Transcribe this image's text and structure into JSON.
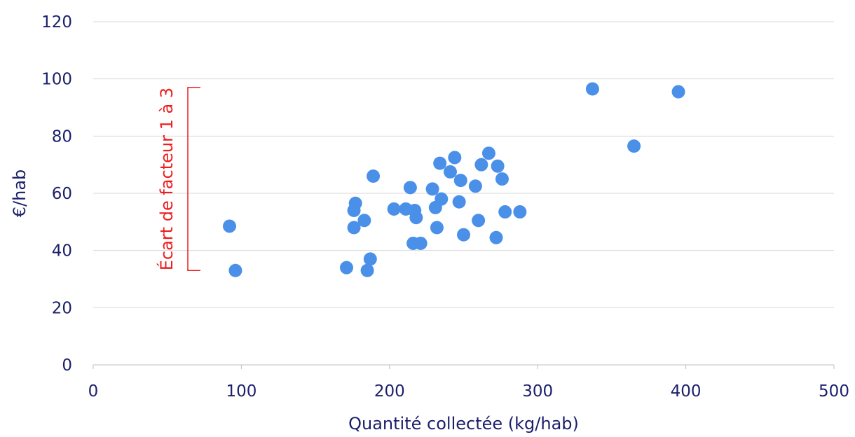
{
  "colors": {
    "points": "#4a90e8",
    "text": "#1b1f6b",
    "annotation": "#ee1c1c"
  },
  "chart_data": {
    "type": "scatter",
    "title": "",
    "xlabel": "Quantité collectée (kg/hab)",
    "ylabel": "€/hab",
    "xlim": [
      0,
      500
    ],
    "ylim": [
      0,
      120
    ],
    "x_ticks": [
      "0",
      "100",
      "200",
      "300",
      "400",
      "500"
    ],
    "y_ticks": [
      "0",
      "20",
      "40",
      "60",
      "80",
      "100",
      "120"
    ],
    "grid": "horizontal",
    "legend": "none",
    "annotation": {
      "text": "Écart de facteur 1 à 3",
      "y_from": 33,
      "y_to": 97
    },
    "series": [
      {
        "points": [
          {
            "x": 92,
            "y": 48.5
          },
          {
            "x": 96,
            "y": 33
          },
          {
            "x": 171,
            "y": 34
          },
          {
            "x": 176,
            "y": 54
          },
          {
            "x": 176,
            "y": 48
          },
          {
            "x": 177,
            "y": 56.5
          },
          {
            "x": 183,
            "y": 50.5
          },
          {
            "x": 185,
            "y": 33
          },
          {
            "x": 187,
            "y": 37
          },
          {
            "x": 189,
            "y": 66
          },
          {
            "x": 203,
            "y": 54.5
          },
          {
            "x": 211,
            "y": 54.5
          },
          {
            "x": 214,
            "y": 62
          },
          {
            "x": 216,
            "y": 42.5
          },
          {
            "x": 217,
            "y": 54
          },
          {
            "x": 218,
            "y": 51.5
          },
          {
            "x": 221,
            "y": 42.5
          },
          {
            "x": 229,
            "y": 61.5
          },
          {
            "x": 231,
            "y": 55
          },
          {
            "x": 232,
            "y": 48
          },
          {
            "x": 234,
            "y": 70.5
          },
          {
            "x": 235,
            "y": 58
          },
          {
            "x": 241,
            "y": 67.5
          },
          {
            "x": 244,
            "y": 72.5
          },
          {
            "x": 247,
            "y": 57
          },
          {
            "x": 248,
            "y": 64.5
          },
          {
            "x": 250,
            "y": 45.5
          },
          {
            "x": 258,
            "y": 62.5
          },
          {
            "x": 260,
            "y": 50.5
          },
          {
            "x": 262,
            "y": 70
          },
          {
            "x": 267,
            "y": 74
          },
          {
            "x": 272,
            "y": 44.5
          },
          {
            "x": 273,
            "y": 69.5
          },
          {
            "x": 276,
            "y": 65
          },
          {
            "x": 278,
            "y": 53.5
          },
          {
            "x": 288,
            "y": 53.5
          },
          {
            "x": 337,
            "y": 96.5
          },
          {
            "x": 365,
            "y": 76.5
          },
          {
            "x": 395,
            "y": 95.5
          }
        ]
      }
    ]
  }
}
